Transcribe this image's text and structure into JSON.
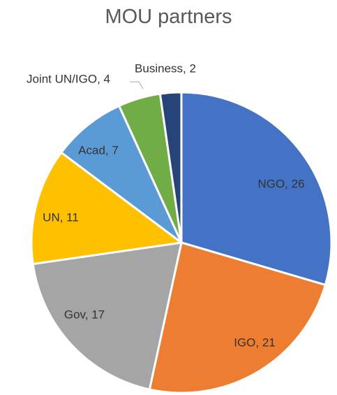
{
  "chart_data": {
    "type": "pie",
    "title": "MOU partners",
    "categories": [
      "NGO",
      "IGO",
      "Gov",
      "UN",
      "Acad",
      "Joint UN/IGO",
      "Business"
    ],
    "values": [
      26,
      21,
      17,
      11,
      7,
      4,
      2
    ],
    "labels": [
      "NGO, 26",
      "IGO, 21",
      "Gov, 17",
      "UN, 11",
      "Acad, 7",
      "Joint UN/IGO, 4",
      "Business, 2"
    ],
    "colors": [
      "#4472c4",
      "#ed7d31",
      "#a5a5a5",
      "#ffc000",
      "#5b9bd5",
      "#70ad47",
      "#264478"
    ],
    "label_colors": [
      "#333333",
      "#333333",
      "#333333",
      "#333333",
      "#333333",
      "#333333",
      "#333333"
    ],
    "start_angle": "12 o'clock",
    "direction": "clockwise"
  }
}
